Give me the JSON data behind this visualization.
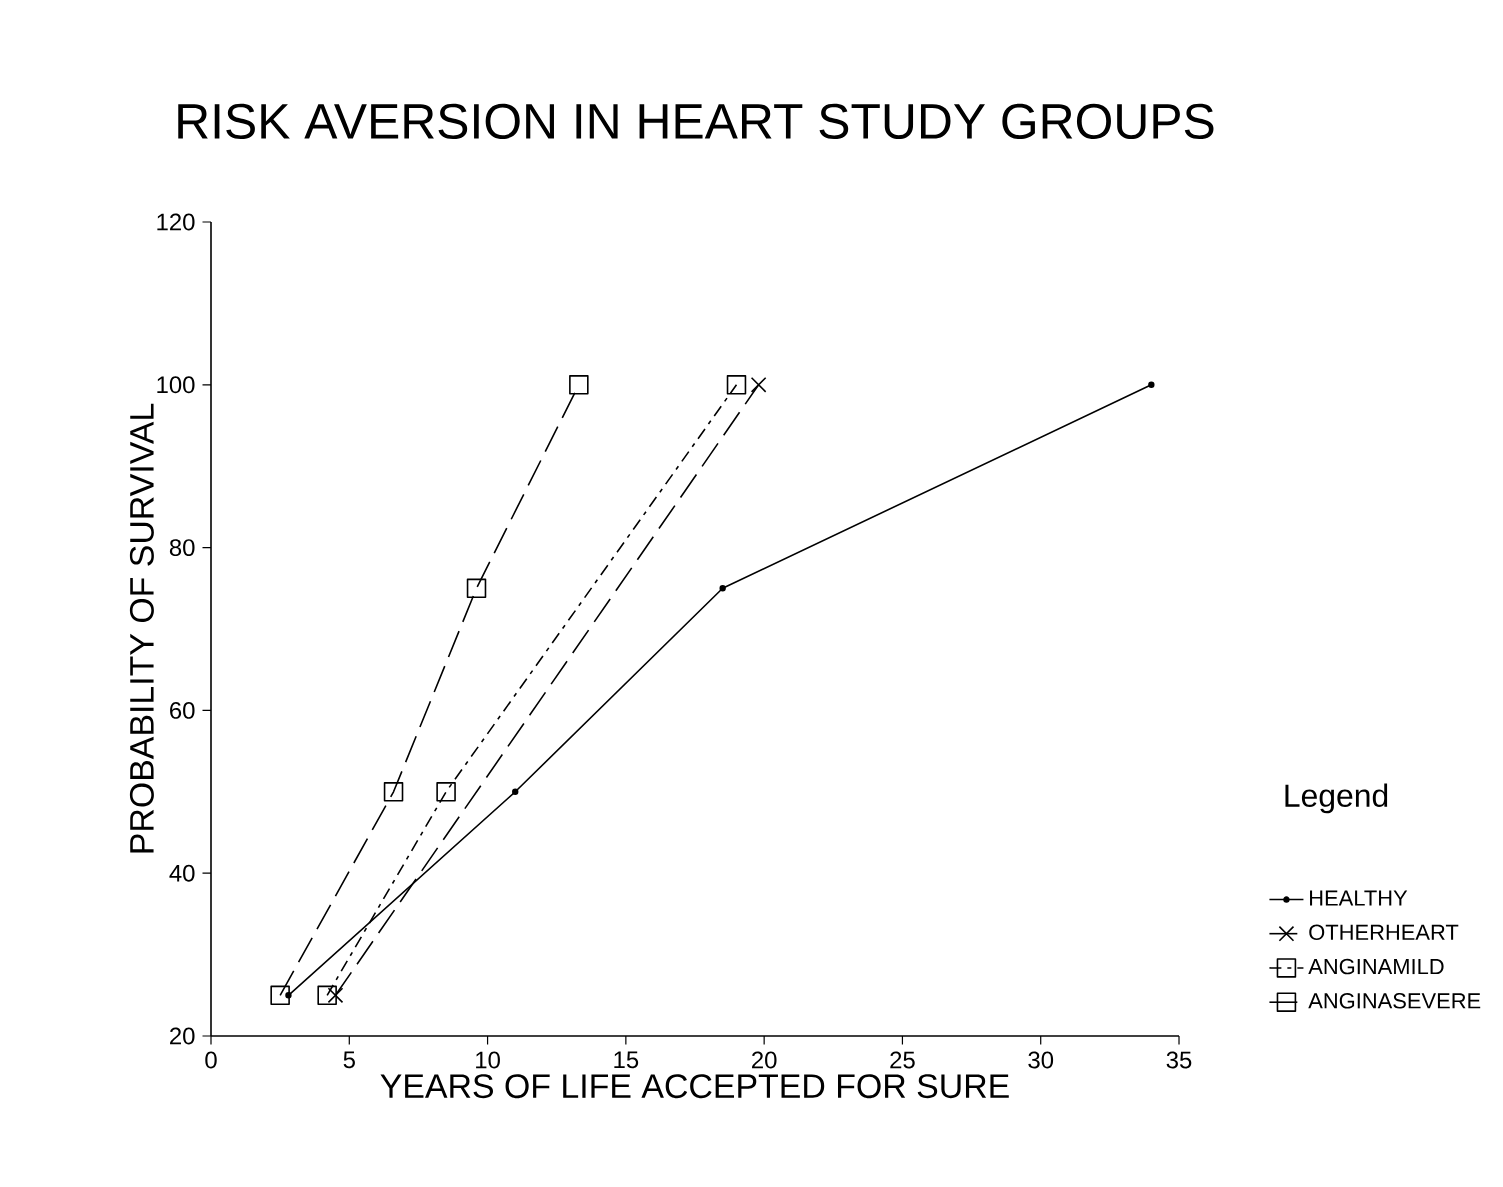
{
  "chart_data": {
    "type": "line",
    "title": "RISK AVERSION IN HEART STUDY GROUPS",
    "xlabel": "YEARS OF LIFE ACCEPTED FOR SURE",
    "ylabel": "PROBABILITY OF SURVIVAL",
    "legend_title": "Legend",
    "legend": "right",
    "grid": false,
    "xlim": [
      0,
      35
    ],
    "xticks": [
      0,
      5,
      10,
      15,
      20,
      25,
      30,
      35
    ],
    "ylim": [
      20,
      120
    ],
    "yticks": [
      20,
      40,
      60,
      80,
      100,
      120
    ],
    "series": [
      {
        "name": "HEALTHY",
        "color": "#000000",
        "marker": "circle",
        "line_style": "solid",
        "x": [
          2.8,
          11,
          18.5,
          34
        ],
        "values": [
          25,
          50,
          75,
          100
        ]
      },
      {
        "name": "OTHERHEART",
        "color": "#000000",
        "marker": "cross",
        "line_style": "dashed",
        "x": [
          4.5,
          19.8
        ],
        "values": [
          25,
          100
        ]
      },
      {
        "name": "ANGINAMILD",
        "color": "#000000",
        "marker": "square",
        "line_style": "dotted",
        "x": [
          4.2,
          8.5,
          19.0
        ],
        "values": [
          25,
          50,
          100
        ]
      },
      {
        "name": "ANGINASEVERE",
        "color": "#000000",
        "marker": "square",
        "line_style": "dashed",
        "x": [
          2.5,
          6.6,
          9.6,
          13.3
        ],
        "values": [
          25,
          50,
          75,
          100
        ]
      }
    ]
  }
}
